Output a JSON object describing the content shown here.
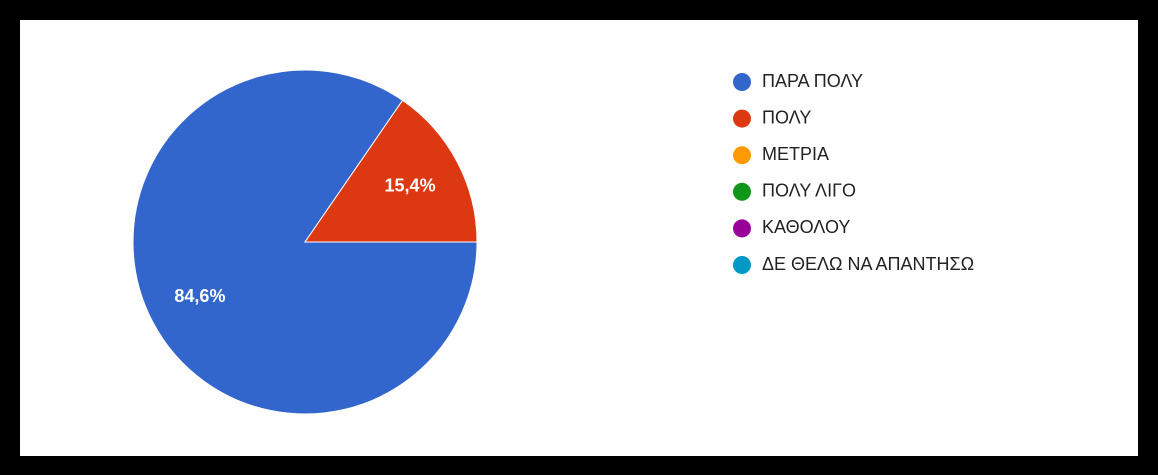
{
  "chart_data": {
    "type": "pie",
    "categories": [
      "ΠΑΡΑ ΠΟΛΥ",
      "ΠΟΛΥ",
      "ΜΕΤΡΙΑ",
      "ΠΟΛΥ ΛΙΓΟ",
      "ΚΑΘΟΛΟΥ",
      "ΔΕ ΘΕΛΩ ΝΑ ΑΠΑΝΤΗΣΩ"
    ],
    "values": [
      84.6,
      15.4,
      0,
      0,
      0,
      0
    ],
    "value_labels": [
      "84,6%",
      "15,4%",
      null,
      null,
      null,
      null
    ],
    "colors": [
      "#3366cc",
      "#dc3912",
      "#ff9900",
      "#109618",
      "#990099",
      "#0099c6"
    ],
    "legend": "right"
  }
}
